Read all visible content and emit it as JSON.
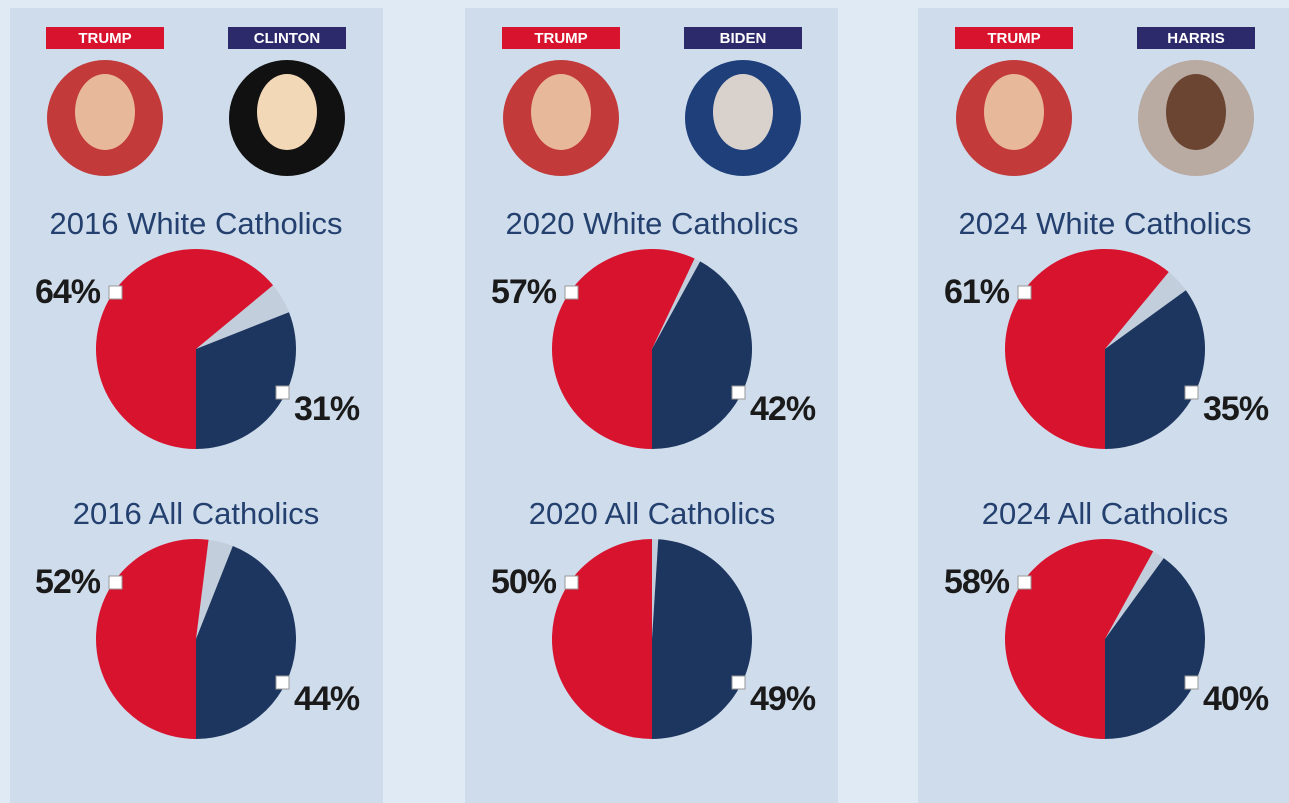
{
  "panels": [
    {
      "candidates": [
        "TRUMP",
        "CLINTON"
      ]
    },
    {
      "candidates": [
        "TRUMP",
        "BIDEN"
      ]
    },
    {
      "candidates": [
        "TRUMP",
        "HARRIS"
      ]
    }
  ],
  "chart_data": [
    {
      "type": "pie",
      "title": "2016 White Catholics",
      "values": [
        64,
        31
      ],
      "value_labels": [
        "64%",
        "31%"
      ],
      "colors": [
        "#d8132e",
        "#1d365f"
      ]
    },
    {
      "type": "pie",
      "title": "2016 All Catholics",
      "values": [
        52,
        44
      ],
      "value_labels": [
        "52%",
        "44%"
      ],
      "colors": [
        "#d8132e",
        "#1d365f"
      ]
    },
    {
      "type": "pie",
      "title": "2020 White Catholics",
      "values": [
        57,
        42
      ],
      "value_labels": [
        "57%",
        "42%"
      ],
      "colors": [
        "#d8132e",
        "#1d365f"
      ]
    },
    {
      "type": "pie",
      "title": "2020 All Catholics",
      "values": [
        50,
        49
      ],
      "value_labels": [
        "50%",
        "49%"
      ],
      "colors": [
        "#d8132e",
        "#1d365f"
      ]
    },
    {
      "type": "pie",
      "title": "2024 White Catholics",
      "values": [
        61,
        35
      ],
      "value_labels": [
        "61%",
        "35%"
      ],
      "colors": [
        "#d8132e",
        "#1d365f"
      ]
    },
    {
      "type": "pie",
      "title": "2024 All Catholics",
      "values": [
        58,
        40
      ],
      "value_labels": [
        "58%",
        "40%"
      ],
      "colors": [
        "#d8132e",
        "#1d365f"
      ]
    }
  ]
}
